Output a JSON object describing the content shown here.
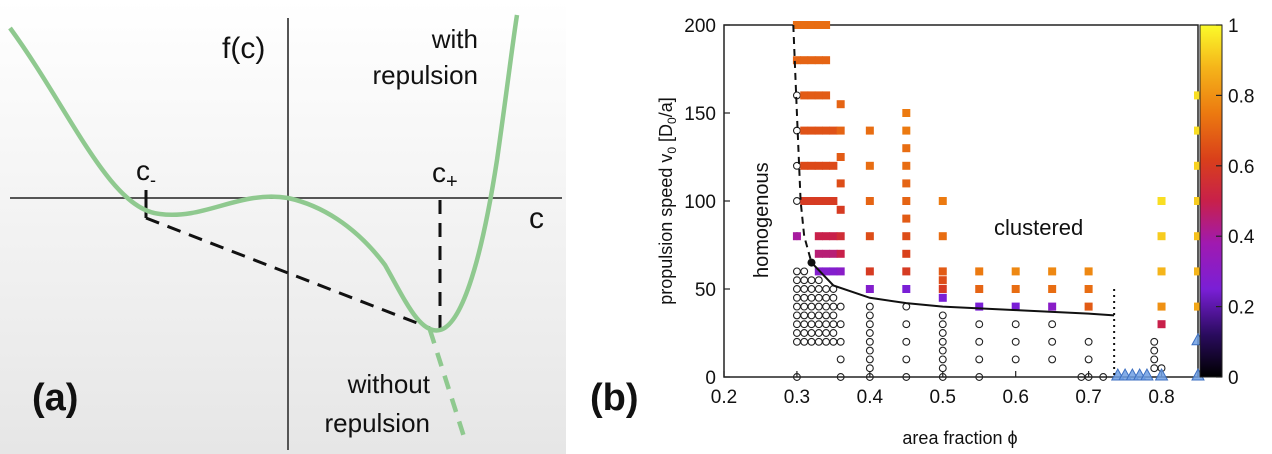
{
  "chart_data": [
    {
      "type": "line",
      "panel_label": "(a)",
      "ylabel": "f(c)",
      "xlabel": "c",
      "point_labels": [
        "c",
        "c"
      ],
      "point_subscripts": [
        "-",
        "+"
      ],
      "annotations": [
        "with",
        "repulsion",
        "without",
        "repulsion"
      ],
      "colors": {
        "curve": "#8fc98f",
        "tangent": "#111111",
        "background": "#f0f0f0"
      }
    },
    {
      "type": "scatter",
      "panel_label": "(b)",
      "xlabel": "area fraction ϕ",
      "ylabel": "propulsion speed v",
      "ylabel_sub": "0",
      "ylabel_unit_pre": " [D",
      "ylabel_unit_sub": "0",
      "ylabel_unit_post": "/a]",
      "xlim": [
        0.2,
        0.85
      ],
      "ylim": [
        0,
        200
      ],
      "xticks": [
        "0.2",
        "0.3",
        "0.4",
        "0.5",
        "0.6",
        "0.7",
        "0.8"
      ],
      "yticks": [
        "0",
        "50",
        "100",
        "150",
        "200"
      ],
      "colorbar": {
        "min": 0,
        "max": 1,
        "ticks": [
          "0",
          "0.2",
          "0.4",
          "0.6",
          "0.8",
          "1"
        ]
      },
      "region_labels": [
        "homogenous",
        "clustered"
      ],
      "boundary_solid": [
        [
          0.32,
          65
        ],
        [
          0.35,
          52
        ],
        [
          0.4,
          45
        ],
        [
          0.45,
          42
        ],
        [
          0.5,
          40
        ],
        [
          0.6,
          38
        ],
        [
          0.7,
          36
        ],
        [
          0.735,
          35
        ]
      ],
      "boundary_dashed": [
        [
          0.295,
          200
        ],
        [
          0.3,
          150
        ],
        [
          0.305,
          100
        ],
        [
          0.31,
          80
        ],
        [
          0.32,
          65
        ]
      ],
      "boundary_dotted_x": 0.735,
      "boundary_dotted_top": 50,
      "homogeneous_points": [
        [
          0.3,
          0
        ],
        [
          0.3,
          20
        ],
        [
          0.3,
          25
        ],
        [
          0.3,
          30
        ],
        [
          0.3,
          35
        ],
        [
          0.3,
          40
        ],
        [
          0.3,
          45
        ],
        [
          0.3,
          50
        ],
        [
          0.3,
          55
        ],
        [
          0.3,
          60
        ],
        [
          0.3,
          80
        ],
        [
          0.3,
          100
        ],
        [
          0.3,
          120
        ],
        [
          0.3,
          140
        ],
        [
          0.3,
          160
        ],
        [
          0.31,
          20
        ],
        [
          0.31,
          25
        ],
        [
          0.31,
          30
        ],
        [
          0.31,
          35
        ],
        [
          0.31,
          40
        ],
        [
          0.31,
          45
        ],
        [
          0.31,
          50
        ],
        [
          0.31,
          55
        ],
        [
          0.31,
          60
        ],
        [
          0.32,
          20
        ],
        [
          0.32,
          25
        ],
        [
          0.32,
          30
        ],
        [
          0.32,
          35
        ],
        [
          0.32,
          40
        ],
        [
          0.32,
          45
        ],
        [
          0.32,
          50
        ],
        [
          0.32,
          55
        ],
        [
          0.33,
          20
        ],
        [
          0.33,
          25
        ],
        [
          0.33,
          30
        ],
        [
          0.33,
          35
        ],
        [
          0.33,
          40
        ],
        [
          0.33,
          45
        ],
        [
          0.33,
          50
        ],
        [
          0.33,
          55
        ],
        [
          0.34,
          20
        ],
        [
          0.34,
          25
        ],
        [
          0.34,
          30
        ],
        [
          0.34,
          35
        ],
        [
          0.34,
          40
        ],
        [
          0.34,
          45
        ],
        [
          0.34,
          50
        ],
        [
          0.35,
          20
        ],
        [
          0.35,
          25
        ],
        [
          0.35,
          30
        ],
        [
          0.35,
          35
        ],
        [
          0.35,
          40
        ],
        [
          0.35,
          45
        ],
        [
          0.35,
          50
        ],
        [
          0.36,
          0
        ],
        [
          0.36,
          10
        ],
        [
          0.36,
          20
        ],
        [
          0.36,
          30
        ],
        [
          0.36,
          40
        ],
        [
          0.4,
          0
        ],
        [
          0.4,
          5
        ],
        [
          0.4,
          10
        ],
        [
          0.4,
          15
        ],
        [
          0.4,
          20
        ],
        [
          0.4,
          25
        ],
        [
          0.4,
          30
        ],
        [
          0.4,
          35
        ],
        [
          0.4,
          40
        ],
        [
          0.45,
          0
        ],
        [
          0.45,
          10
        ],
        [
          0.45,
          20
        ],
        [
          0.45,
          30
        ],
        [
          0.45,
          40
        ],
        [
          0.5,
          0
        ],
        [
          0.5,
          5
        ],
        [
          0.5,
          10
        ],
        [
          0.5,
          15
        ],
        [
          0.5,
          20
        ],
        [
          0.5,
          25
        ],
        [
          0.5,
          30
        ],
        [
          0.5,
          35
        ],
        [
          0.55,
          0
        ],
        [
          0.55,
          10
        ],
        [
          0.55,
          20
        ],
        [
          0.55,
          30
        ],
        [
          0.6,
          10
        ],
        [
          0.6,
          20
        ],
        [
          0.6,
          30
        ],
        [
          0.65,
          10
        ],
        [
          0.65,
          20
        ],
        [
          0.65,
          30
        ],
        [
          0.69,
          0
        ],
        [
          0.7,
          0
        ],
        [
          0.7,
          10
        ],
        [
          0.7,
          20
        ],
        [
          0.72,
          0
        ],
        [
          0.79,
          5
        ],
        [
          0.79,
          10
        ],
        [
          0.79,
          15
        ],
        [
          0.79,
          20
        ],
        [
          0.8,
          5
        ]
      ],
      "clustered_points": [
        [
          0.3,
          200,
          0.72
        ],
        [
          0.31,
          200,
          0.72
        ],
        [
          0.32,
          200,
          0.72
        ],
        [
          0.33,
          200,
          0.72
        ],
        [
          0.34,
          200,
          0.72
        ],
        [
          0.3,
          180,
          0.7
        ],
        [
          0.31,
          180,
          0.7
        ],
        [
          0.32,
          180,
          0.7
        ],
        [
          0.33,
          180,
          0.7
        ],
        [
          0.34,
          180,
          0.7
        ],
        [
          0.31,
          160,
          0.68
        ],
        [
          0.32,
          160,
          0.68
        ],
        [
          0.33,
          160,
          0.68
        ],
        [
          0.34,
          160,
          0.68
        ],
        [
          0.31,
          140,
          0.66
        ],
        [
          0.32,
          140,
          0.66
        ],
        [
          0.33,
          140,
          0.66
        ],
        [
          0.34,
          140,
          0.66
        ],
        [
          0.35,
          140,
          0.66
        ],
        [
          0.31,
          120,
          0.64
        ],
        [
          0.32,
          120,
          0.64
        ],
        [
          0.33,
          120,
          0.64
        ],
        [
          0.34,
          120,
          0.64
        ],
        [
          0.35,
          120,
          0.64
        ],
        [
          0.31,
          100,
          0.6
        ],
        [
          0.32,
          100,
          0.6
        ],
        [
          0.33,
          100,
          0.6
        ],
        [
          0.34,
          100,
          0.6
        ],
        [
          0.35,
          100,
          0.6
        ],
        [
          0.3,
          80,
          0.4
        ],
        [
          0.33,
          80,
          0.5
        ],
        [
          0.34,
          80,
          0.5
        ],
        [
          0.35,
          80,
          0.5
        ],
        [
          0.33,
          70,
          0.45
        ],
        [
          0.34,
          70,
          0.45
        ],
        [
          0.35,
          70,
          0.45
        ],
        [
          0.33,
          60,
          0.28
        ],
        [
          0.34,
          60,
          0.28
        ],
        [
          0.35,
          60,
          0.28
        ],
        [
          0.36,
          155,
          0.7
        ],
        [
          0.36,
          140,
          0.7
        ],
        [
          0.36,
          125,
          0.68
        ],
        [
          0.36,
          110,
          0.65
        ],
        [
          0.36,
          95,
          0.6
        ],
        [
          0.36,
          80,
          0.55
        ],
        [
          0.36,
          70,
          0.5
        ],
        [
          0.36,
          60,
          0.3
        ],
        [
          0.4,
          140,
          0.72
        ],
        [
          0.4,
          120,
          0.72
        ],
        [
          0.4,
          100,
          0.7
        ],
        [
          0.4,
          80,
          0.65
        ],
        [
          0.4,
          60,
          0.6
        ],
        [
          0.4,
          50,
          0.28
        ],
        [
          0.45,
          150,
          0.75
        ],
        [
          0.45,
          140,
          0.75
        ],
        [
          0.45,
          130,
          0.72
        ],
        [
          0.45,
          120,
          0.72
        ],
        [
          0.45,
          110,
          0.7
        ],
        [
          0.45,
          100,
          0.7
        ],
        [
          0.45,
          90,
          0.68
        ],
        [
          0.45,
          80,
          0.65
        ],
        [
          0.45,
          70,
          0.62
        ],
        [
          0.45,
          60,
          0.6
        ],
        [
          0.45,
          50,
          0.25
        ],
        [
          0.5,
          100,
          0.75
        ],
        [
          0.5,
          80,
          0.72
        ],
        [
          0.5,
          60,
          0.68
        ],
        [
          0.5,
          55,
          0.65
        ],
        [
          0.5,
          50,
          0.6
        ],
        [
          0.5,
          45,
          0.25
        ],
        [
          0.55,
          60,
          0.75
        ],
        [
          0.55,
          50,
          0.7
        ],
        [
          0.55,
          40,
          0.25
        ],
        [
          0.6,
          60,
          0.78
        ],
        [
          0.6,
          50,
          0.72
        ],
        [
          0.6,
          40,
          0.25
        ],
        [
          0.65,
          60,
          0.78
        ],
        [
          0.65,
          50,
          0.72
        ],
        [
          0.65,
          40,
          0.3
        ],
        [
          0.7,
          60,
          0.78
        ],
        [
          0.7,
          50,
          0.72
        ],
        [
          0.7,
          40,
          0.68
        ],
        [
          0.8,
          100,
          0.95
        ],
        [
          0.8,
          80,
          0.92
        ],
        [
          0.8,
          60,
          0.88
        ],
        [
          0.8,
          40,
          0.8
        ],
        [
          0.8,
          30,
          0.5
        ],
        [
          0.85,
          160,
          0.95
        ],
        [
          0.85,
          140,
          0.95
        ],
        [
          0.85,
          120,
          0.93
        ],
        [
          0.85,
          100,
          0.92
        ],
        [
          0.85,
          80,
          0.9
        ],
        [
          0.85,
          60,
          0.88
        ],
        [
          0.85,
          40,
          0.85
        ]
      ],
      "triangle_points": [
        [
          0.74,
          0
        ],
        [
          0.75,
          0
        ],
        [
          0.76,
          0
        ],
        [
          0.77,
          0
        ],
        [
          0.78,
          0
        ],
        [
          0.8,
          0
        ],
        [
          0.85,
          20
        ],
        [
          0.85,
          0
        ]
      ]
    }
  ]
}
